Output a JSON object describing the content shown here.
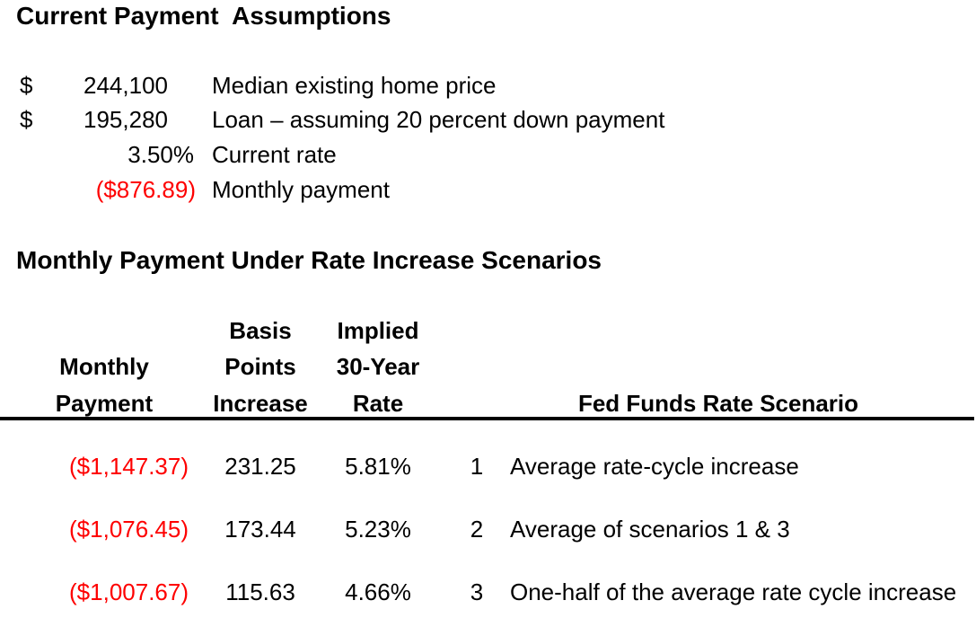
{
  "colors": {
    "background": "#ffffff",
    "text": "#000000",
    "negative_amount": "#fe0000"
  },
  "assumptions": {
    "title": "Current Payment  Assumptions",
    "rows": [
      {
        "currency": "$",
        "value": "244,100",
        "label": "Median existing home price"
      },
      {
        "currency": "$",
        "value": "195,280",
        "label": "Loan – assuming 20 percent down payment"
      },
      {
        "currency": "",
        "value": "3.50%",
        "label": "Current rate"
      },
      {
        "currency": "",
        "value": "($876.89)",
        "label": "Monthly payment"
      }
    ]
  },
  "scenario_table": {
    "title": "Monthly Payment Under Rate Increase Scenarios",
    "headers": {
      "monthly_payment": [
        "Monthly",
        "Payment"
      ],
      "basis_points": [
        "Basis",
        "Points",
        "Increase"
      ],
      "implied_rate": [
        "Implied",
        "30-Year",
        "Rate"
      ],
      "scenario": "Fed Funds Rate Scenario"
    },
    "rows": [
      {
        "monthly_payment": "($1,147.37)",
        "basis_points_increase": "231.25",
        "implied_30yr_rate": "5.81%",
        "scenario_number": "1",
        "scenario_description": "Average rate-cycle increase"
      },
      {
        "monthly_payment": "($1,076.45)",
        "basis_points_increase": "173.44",
        "implied_30yr_rate": "5.23%",
        "scenario_number": "2",
        "scenario_description": "Average of scenarios 1 & 3"
      },
      {
        "monthly_payment": "($1,007.67)",
        "basis_points_increase": "115.63",
        "implied_30yr_rate": "4.66%",
        "scenario_number": "3",
        "scenario_description": "One-half of the average rate cycle increase"
      }
    ]
  }
}
